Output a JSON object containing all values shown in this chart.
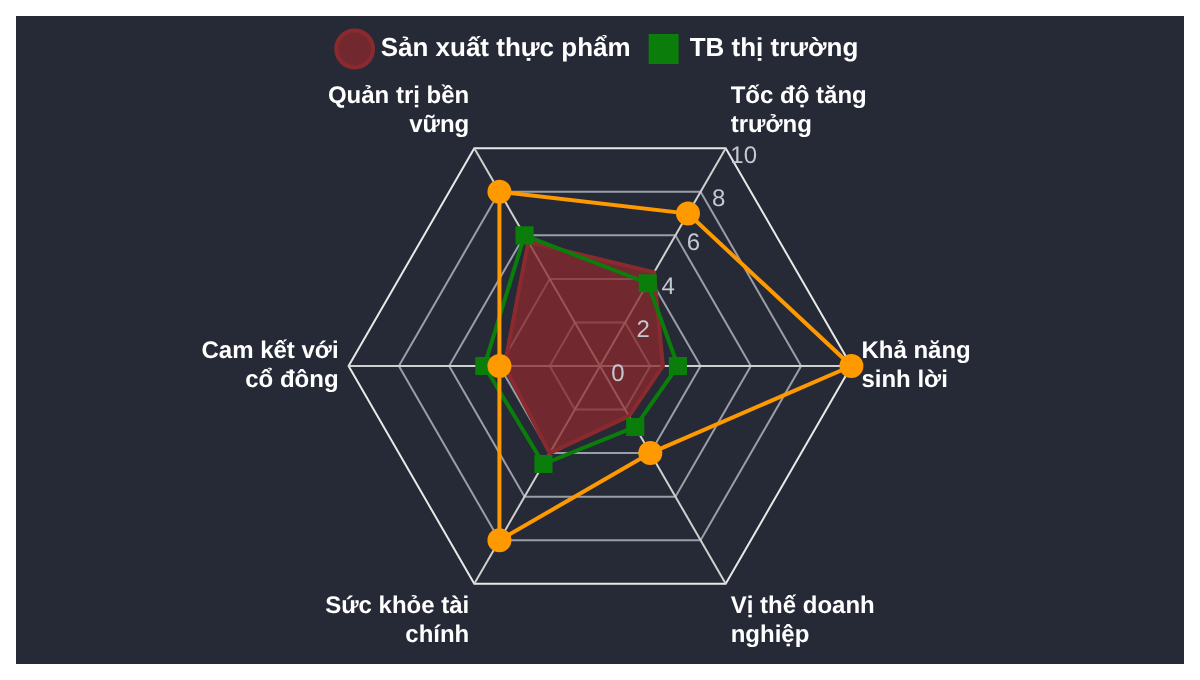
{
  "chart_data": {
    "type": "radar",
    "categories": [
      "Tốc độ tăng trưởng",
      "Khả năng sinh lời",
      "Vị thế doanh nghiệp",
      "Sức khỏe tài chính",
      "Cam kết với cổ đông",
      "Quản trị bền vững"
    ],
    "ylim": [
      0,
      10
    ],
    "yticks": [
      0,
      2,
      4,
      6,
      8,
      10
    ],
    "grid": true,
    "legend": "top",
    "series": [
      {
        "color": "#ff9900",
        "marker": "circle",
        "values": [
          7,
          10,
          4,
          8,
          4,
          8
        ]
      },
      {
        "name": "Sản xuất thực phẩm",
        "color": "#8b2a2e",
        "marker": "none",
        "type": "area",
        "values": [
          4.3,
          2.5,
          2.3,
          4,
          3.8,
          5.7
        ]
      },
      {
        "name": "TB thị trường",
        "color": "#0a7d0a",
        "marker": "square",
        "values": [
          3.8,
          3.1,
          2.8,
          4.5,
          4.6,
          6
        ]
      }
    ]
  }
}
